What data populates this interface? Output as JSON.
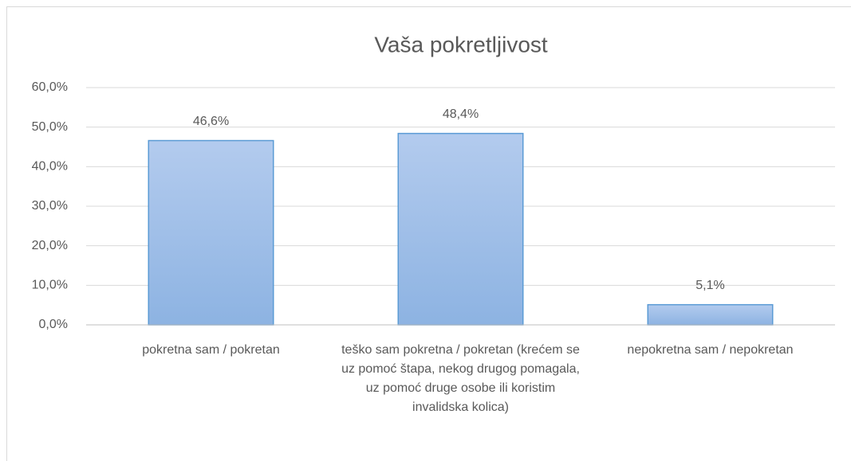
{
  "chart_data": {
    "type": "bar",
    "title": "Vaša pokretljivost",
    "categories": [
      "pokretna sam / pokretan",
      "teško sam pokretna / pokretan (krećem se uz pomoć štapa, nekog drugog pomagala, uz pomoć druge osobe ili koristim invalidska kolica)",
      "nepokretna sam / nepokretan"
    ],
    "values": [
      46.6,
      48.4,
      5.1
    ],
    "value_labels": [
      "46,6%",
      "48,4%",
      "5,1%"
    ],
    "color": "#9dbde8",
    "ylim": [
      0,
      60
    ],
    "yticks": [
      {
        "value": 0,
        "label": "0,0%"
      },
      {
        "value": 10,
        "label": "10,0%"
      },
      {
        "value": 20,
        "label": "20,0%"
      },
      {
        "value": 30,
        "label": "30,0%"
      },
      {
        "value": 40,
        "label": "40,0%"
      },
      {
        "value": 50,
        "label": "50,0%"
      },
      {
        "value": 60,
        "label": "60,0%"
      }
    ],
    "grid": true
  }
}
